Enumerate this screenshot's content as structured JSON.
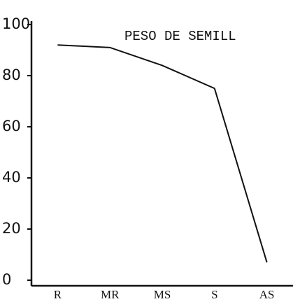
{
  "chart_data": {
    "type": "line",
    "title": "PESO DE SEMILL",
    "categories": [
      "R",
      "MR",
      "MS",
      "S",
      "AS"
    ],
    "values": [
      92,
      91,
      84,
      75,
      7
    ],
    "color": "#111111",
    "ylim": [
      0,
      100
    ],
    "yticks": [
      0,
      20,
      40,
      60,
      80,
      100
    ],
    "grid": false
  }
}
